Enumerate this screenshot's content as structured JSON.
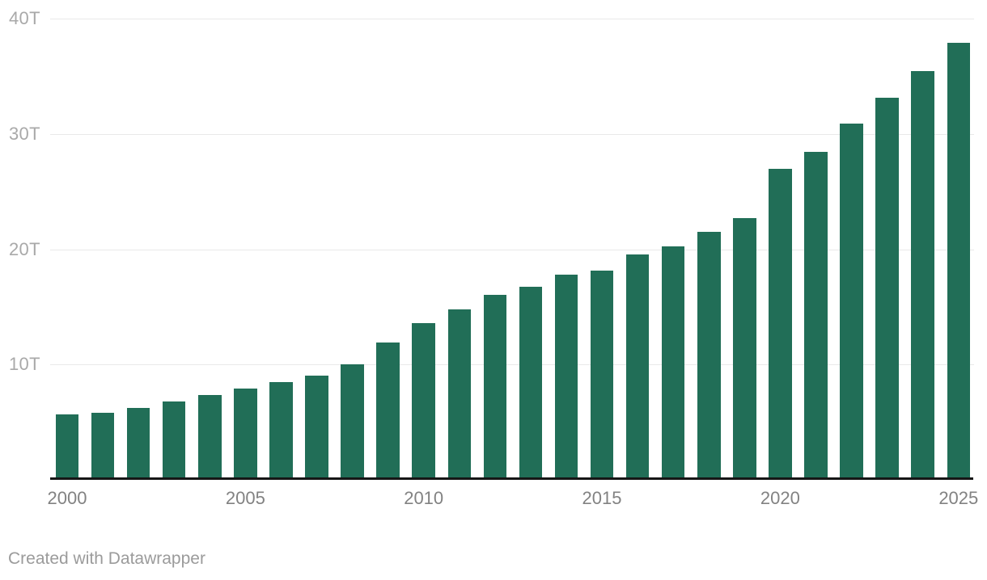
{
  "page": {
    "background": "#ffffff"
  },
  "chart_data": {
    "type": "bar",
    "title": "",
    "unit": "T (trillions USD)",
    "categories": [
      2000,
      2001,
      2002,
      2003,
      2004,
      2005,
      2006,
      2007,
      2008,
      2009,
      2010,
      2011,
      2012,
      2013,
      2014,
      2015,
      2016,
      2017,
      2018,
      2019,
      2020,
      2021,
      2022,
      2023,
      2024,
      2025
    ],
    "values": [
      5.67,
      5.81,
      6.23,
      6.78,
      7.38,
      7.93,
      8.51,
      9.01,
      10.02,
      11.91,
      13.56,
      14.79,
      16.07,
      16.74,
      17.82,
      18.15,
      19.57,
      20.24,
      21.52,
      22.72,
      26.95,
      28.43,
      30.93,
      33.17,
      35.46,
      37.9
    ],
    "xlabel": "",
    "ylabel": "",
    "ylim": [
      0,
      40
    ],
    "x_tick_years": [
      2000,
      2005,
      2010,
      2015,
      2020,
      2025
    ],
    "x_tick_labels": [
      "2000",
      "2005",
      "2010",
      "2015",
      "2020",
      "2025"
    ],
    "y_tick_values": [
      10,
      20,
      30,
      40
    ],
    "y_tick_labels": [
      "10T",
      "20T",
      "30T",
      "40T"
    ],
    "grid": "horizontal-only",
    "legend": "none",
    "colors": {
      "bar": "#216e57",
      "gridline": "#e9e9e9",
      "axis_line": "#161616",
      "y_tick_label": "#a9a9a9",
      "x_tick_label": "#828282",
      "credit_text": "#9b9b9b"
    }
  },
  "footer": {
    "credit": "Created with Datawrapper"
  }
}
